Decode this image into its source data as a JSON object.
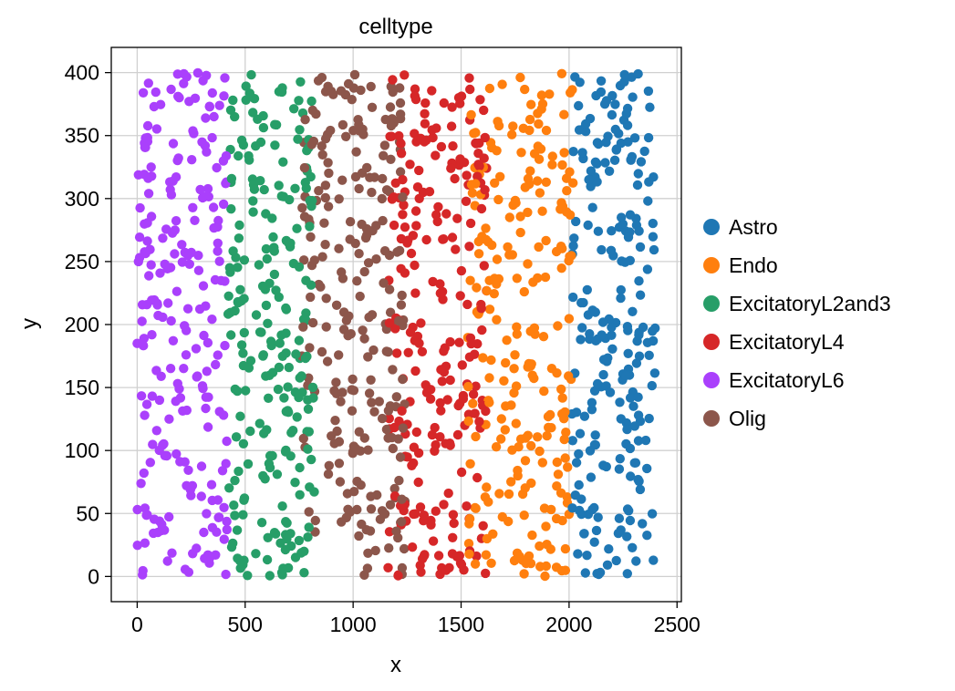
{
  "chart_data": {
    "type": "scatter",
    "title": "celltype",
    "xlabel": "x",
    "ylabel": "y",
    "xlim": [
      -120,
      2520
    ],
    "ylim": [
      -20,
      420
    ],
    "xticks": [
      0,
      500,
      1000,
      1500,
      2000,
      2500
    ],
    "yticks": [
      0,
      50,
      100,
      150,
      200,
      250,
      300,
      350,
      400
    ],
    "grid": true,
    "legend_position": "right",
    "series": [
      {
        "name": "Astro",
        "color": "#1f77b4",
        "x_range": [
          2010,
          2400
        ],
        "count": 230
      },
      {
        "name": "Endo",
        "color": "#ff7f0e",
        "x_range": [
          1530,
          2020
        ],
        "count": 240
      },
      {
        "name": "ExcitatoryL2and3",
        "color": "#279e68",
        "x_range": [
          420,
          820
        ],
        "count": 230
      },
      {
        "name": "ExcitatoryL4",
        "color": "#d62728",
        "x_range": [
          1160,
          1620
        ],
        "count": 240
      },
      {
        "name": "ExcitatoryL6",
        "color": "#aa40fc",
        "x_range": [
          0,
          420
        ],
        "count": 230
      },
      {
        "name": "Olig",
        "color": "#8c564b",
        "x_range": [
          760,
          1240
        ],
        "count": 240
      }
    ]
  }
}
